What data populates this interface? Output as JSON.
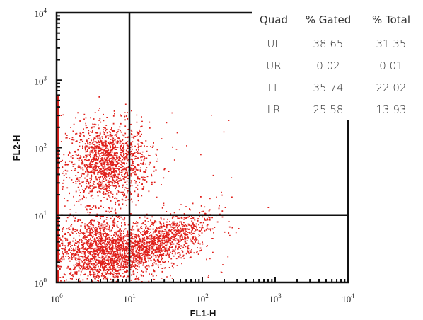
{
  "chart_data": {
    "type": "scatter",
    "xlabel": "FL1-H",
    "ylabel": "FL2-H",
    "xscale": "log",
    "yscale": "log",
    "xlim": [
      1,
      10000
    ],
    "ylim": [
      1,
      10000
    ],
    "x_ticks": [
      {
        "base": "10",
        "exp": "0"
      },
      {
        "base": "10",
        "exp": "1"
      },
      {
        "base": "10",
        "exp": "2"
      },
      {
        "base": "10",
        "exp": "3"
      },
      {
        "base": "10",
        "exp": "4"
      }
    ],
    "y_ticks": [
      {
        "base": "10",
        "exp": "0"
      },
      {
        "base": "10",
        "exp": "1"
      },
      {
        "base": "10",
        "exp": "2"
      },
      {
        "base": "10",
        "exp": "3"
      },
      {
        "base": "10",
        "exp": "4"
      }
    ],
    "gates": {
      "x": 10,
      "y": 10
    },
    "point_color": "#e0201b",
    "populations": [
      {
        "quadrant": "UL",
        "x_center": 5,
        "y_center": 60,
        "x_spread_log": 0.28,
        "y_spread_log": 0.3,
        "count": 1400
      },
      {
        "quadrant": "LL",
        "x_center": 4,
        "y_center": 3,
        "x_spread_log": 0.3,
        "y_spread_log": 0.25,
        "count": 1500
      },
      {
        "quadrant": "LR",
        "x_center": 25,
        "y_center": 4,
        "x_spread_log": 0.35,
        "y_spread_log": 0.25,
        "count": 1200
      }
    ],
    "table": {
      "columns": [
        "Quad",
        "% Gated",
        "% Total"
      ],
      "rows": [
        [
          "UL",
          "38.65",
          "31.35"
        ],
        [
          "UR",
          "0.02",
          "0.01"
        ],
        [
          "LL",
          "35.74",
          "22.02"
        ],
        [
          "LR",
          "25.58",
          "13.93"
        ]
      ]
    }
  }
}
